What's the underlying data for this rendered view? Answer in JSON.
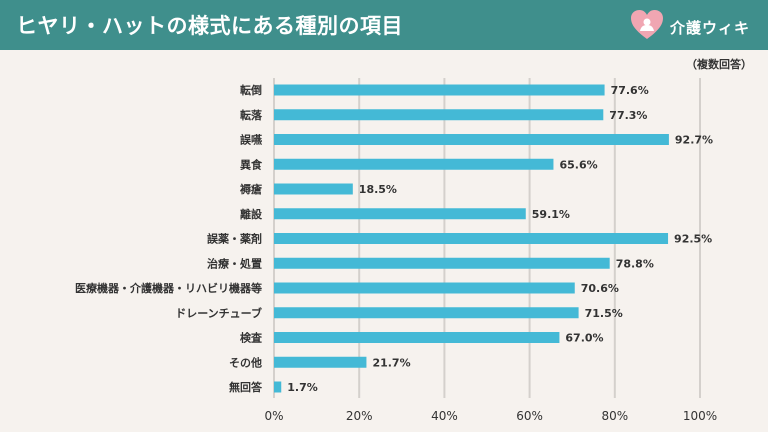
{
  "header": {
    "title": "ヒヤリ・ハットの様式にある種別の項目",
    "brand": "介護ウィキ"
  },
  "note": "（複数回答）",
  "colors": {
    "header_bg": "#3f8f8c",
    "bar": "#44b9d6",
    "background": "#f6f2ee",
    "logo": "#f0a6b2"
  },
  "chart_data": {
    "type": "bar",
    "orientation": "horizontal",
    "categories": [
      "転倒",
      "転落",
      "誤嚥",
      "異食",
      "褥瘡",
      "離設",
      "誤薬・薬剤",
      "治療・処置",
      "医療機器・介護機器・リハビリ機器等",
      "ドレーンチューブ",
      "検査",
      "その他",
      "無回答"
    ],
    "values": [
      77.6,
      77.3,
      92.7,
      65.6,
      18.5,
      59.1,
      92.5,
      78.8,
      70.6,
      71.5,
      67.0,
      21.7,
      1.7
    ],
    "value_labels": [
      "77.6%",
      "77.3%",
      "92.7%",
      "65.6%",
      "18.5%",
      "59.1%",
      "92.5%",
      "78.8%",
      "70.6%",
      "71.5%",
      "67.0%",
      "21.7%",
      "1.7%"
    ],
    "xlim": [
      0,
      100
    ],
    "xticks": [
      "0%",
      "20%",
      "40%",
      "60%",
      "80%",
      "100%"
    ],
    "grid": true
  }
}
